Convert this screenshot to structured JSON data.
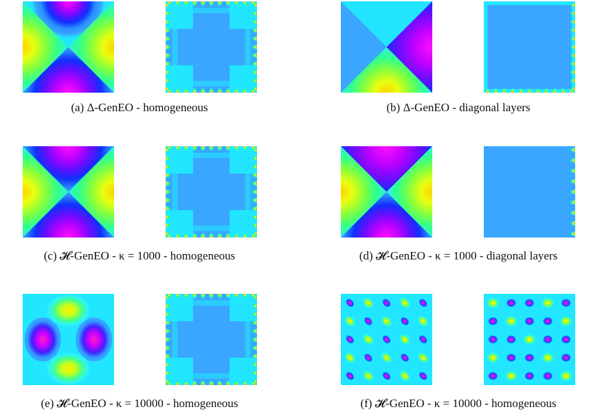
{
  "figure": {
    "panels": [
      {
        "caption": "(a) Δ-GenEO - homogeneous"
      },
      {
        "caption": "(b) Δ-GenEO - diagonal layers"
      },
      {
        "caption": "(c) 𝓗-GenEO - κ = 1000 - homogeneous"
      },
      {
        "caption": "(d) 𝓗-GenEO - κ = 1000 - diagonal layers"
      },
      {
        "caption": "(e) 𝓗-GenEO - κ = 10000 - homogeneous"
      },
      {
        "caption": "(f) 𝓗-GenEO - κ = 10000 - homogeneous"
      }
    ]
  }
}
